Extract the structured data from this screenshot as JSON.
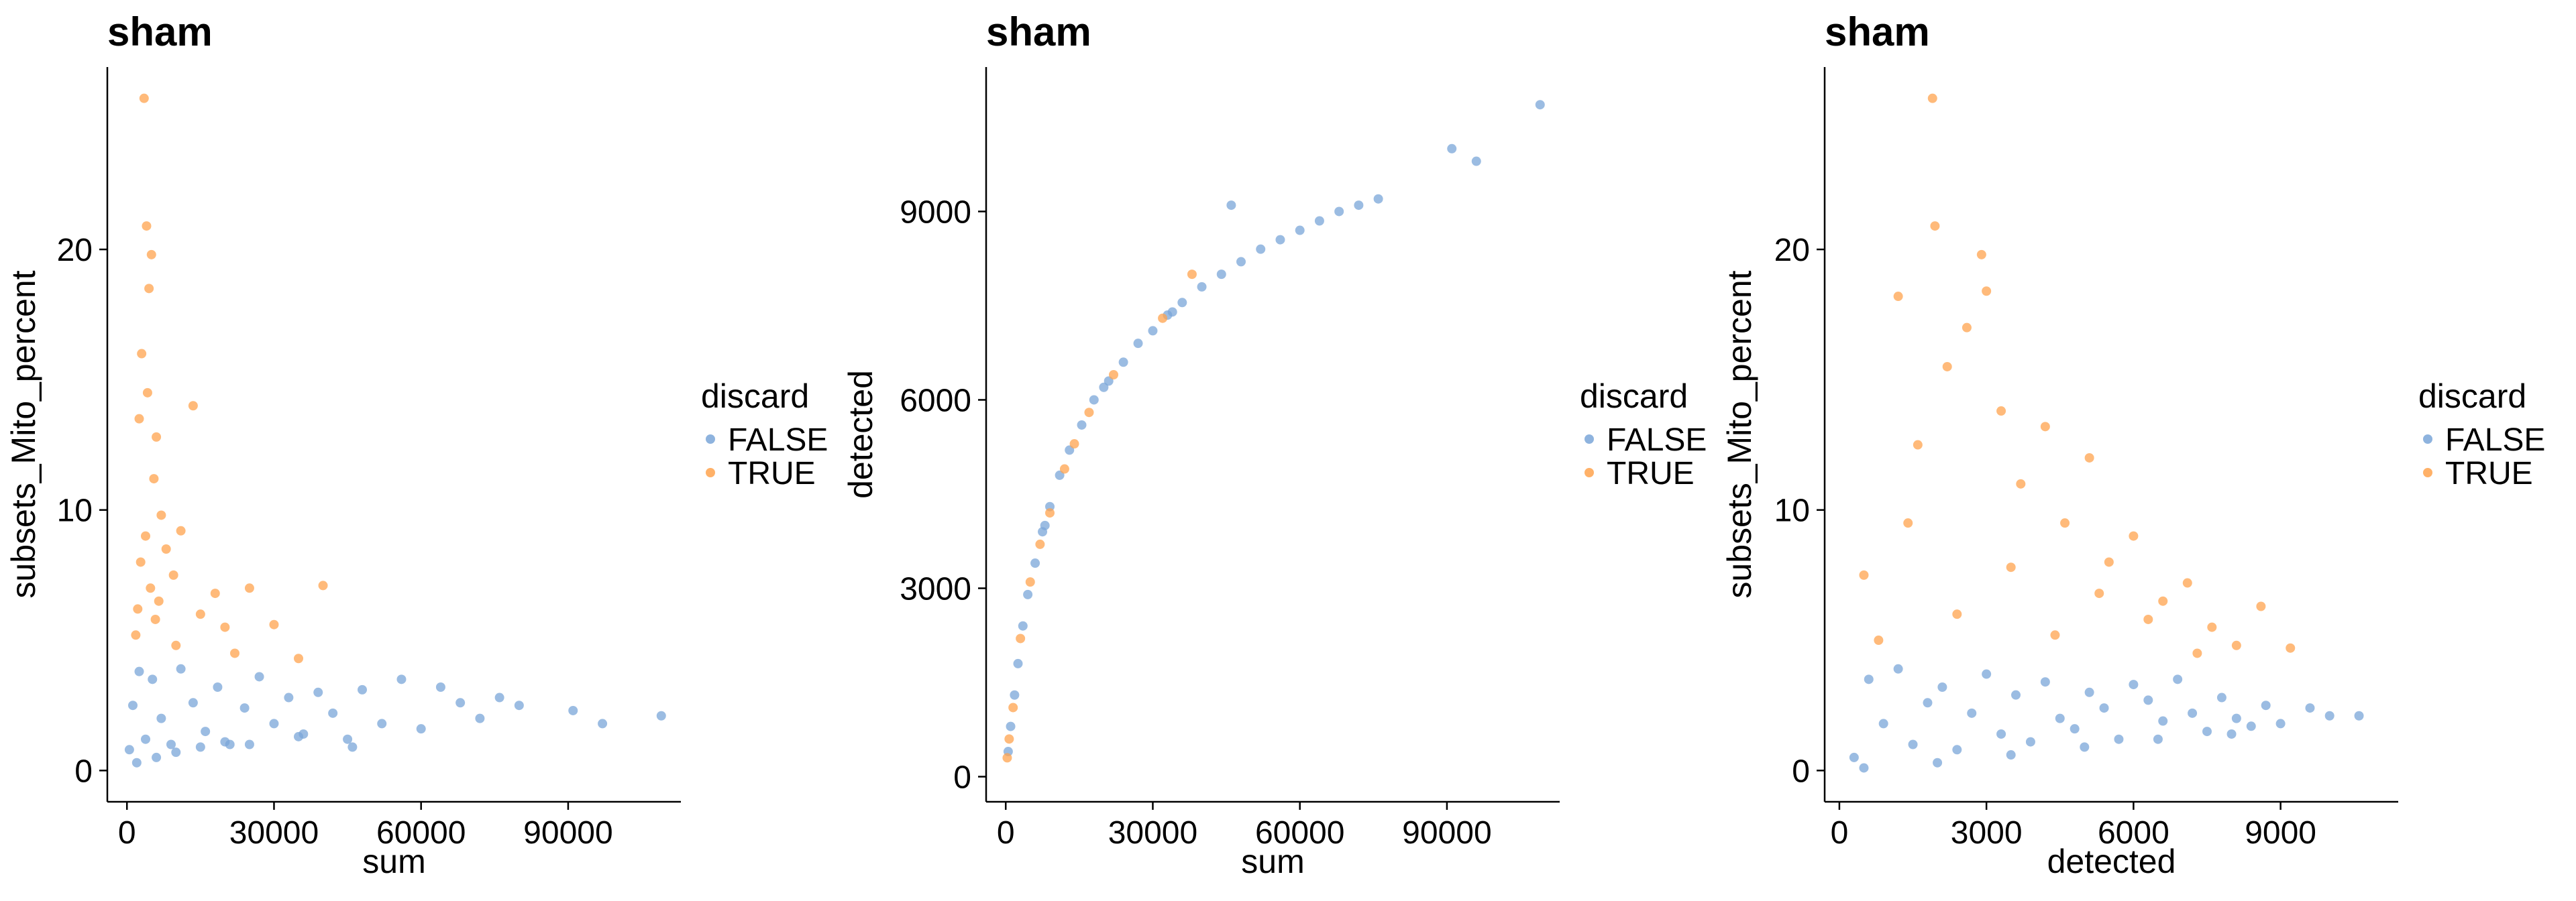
{
  "colors": {
    "FALSE": "#7aa6d8",
    "TRUE": "#ffa34d"
  },
  "chart_data": [
    {
      "type": "scatter",
      "title": "sham",
      "xlabel": "sum",
      "ylabel": "subsets_Mito_percent",
      "xlim": [
        -4000,
        113000
      ],
      "ylim": [
        -1.2,
        27
      ],
      "xticks": [
        0,
        30000,
        60000,
        90000
      ],
      "yticks": [
        0,
        10,
        20
      ],
      "legend": {
        "title": "discard",
        "entries": [
          "FALSE",
          "TRUE"
        ],
        "position": "right"
      },
      "series": [
        {
          "name": "FALSE",
          "color": "#7aa6d8",
          "x": [
            500,
            1200,
            2500,
            3800,
            5200,
            7000,
            9000,
            11000,
            13500,
            16000,
            18500,
            21000,
            24000,
            27000,
            30000,
            33000,
            36000,
            39000,
            42000,
            45000,
            48000,
            52000,
            56000,
            60000,
            64000,
            68000,
            72000,
            76000,
            80000,
            91000,
            97000,
            109000,
            2000,
            6000,
            10000,
            15000,
            20000,
            25000,
            35000,
            46000
          ],
          "y": [
            0.8,
            2.5,
            3.8,
            1.2,
            3.5,
            2.0,
            1.0,
            3.9,
            2.6,
            1.5,
            3.2,
            1.0,
            2.4,
            3.6,
            1.8,
            2.8,
            1.4,
            3.0,
            2.2,
            1.2,
            3.1,
            1.8,
            3.5,
            1.6,
            3.2,
            2.6,
            2.0,
            2.8,
            2.5,
            2.3,
            1.8,
            2.1,
            0.3,
            0.5,
            0.7,
            0.9,
            1.1,
            1.0,
            1.3,
            0.9
          ]
        },
        {
          "name": "TRUE",
          "color": "#ffa34d",
          "x": [
            3500,
            4000,
            4500,
            5000,
            3000,
            4200,
            6000,
            2500,
            5500,
            7000,
            3800,
            2800,
            4800,
            6500,
            8000,
            9500,
            11000,
            13500,
            15000,
            18000,
            20000,
            22000,
            25000,
            30000,
            35000,
            40000,
            1800,
            2200,
            5800,
            10000
          ],
          "y": [
            25.8,
            20.9,
            18.5,
            19.8,
            16.0,
            14.5,
            12.8,
            13.5,
            11.2,
            9.8,
            9.0,
            8.0,
            7.0,
            6.5,
            8.5,
            7.5,
            9.2,
            14.0,
            6.0,
            6.8,
            5.5,
            4.5,
            7.0,
            5.6,
            4.3,
            7.1,
            5.2,
            6.2,
            5.8,
            4.8
          ]
        }
      ]
    },
    {
      "type": "scatter",
      "title": "sham",
      "xlabel": "sum",
      "ylabel": "detected",
      "xlim": [
        -4000,
        113000
      ],
      "ylim": [
        -400,
        11300
      ],
      "xticks": [
        0,
        30000,
        60000,
        90000
      ],
      "yticks": [
        0,
        3000,
        6000,
        9000
      ],
      "legend": {
        "title": "discard",
        "entries": [
          "FALSE",
          "TRUE"
        ],
        "position": "right"
      },
      "series": [
        {
          "name": "FALSE",
          "color": "#7aa6d8",
          "x": [
            500,
            1000,
            1800,
            2500,
            3500,
            4500,
            6000,
            7500,
            9000,
            11000,
            13000,
            15500,
            18000,
            21000,
            24000,
            27000,
            30000,
            33000,
            36000,
            40000,
            44000,
            48000,
            52000,
            56000,
            60000,
            64000,
            68000,
            72000,
            76000,
            91000,
            96000,
            109000,
            8000,
            20000,
            34000,
            46000
          ],
          "y": [
            400,
            800,
            1300,
            1800,
            2400,
            2900,
            3400,
            3900,
            4300,
            4800,
            5200,
            5600,
            6000,
            6300,
            6600,
            6900,
            7100,
            7350,
            7550,
            7800,
            8000,
            8200,
            8400,
            8550,
            8700,
            8850,
            9000,
            9100,
            9200,
            10000,
            9800,
            10700,
            4000,
            6200,
            7400,
            9100
          ]
        },
        {
          "name": "TRUE",
          "color": "#ffa34d",
          "x": [
            300,
            700,
            1500,
            3000,
            5000,
            7000,
            9000,
            12000,
            14000,
            17000,
            22000,
            32000,
            38000
          ],
          "y": [
            300,
            600,
            1100,
            2200,
            3100,
            3700,
            4200,
            4900,
            5300,
            5800,
            6400,
            7300,
            8000
          ]
        }
      ]
    },
    {
      "type": "scatter",
      "title": "sham",
      "xlabel": "detected",
      "ylabel": "subsets_Mito_percent",
      "xlim": [
        -300,
        11400
      ],
      "ylim": [
        -1.2,
        27
      ],
      "xticks": [
        0,
        3000,
        6000,
        9000
      ],
      "yticks": [
        0,
        10,
        20
      ],
      "legend": {
        "title": "discard",
        "entries": [
          "FALSE",
          "TRUE"
        ],
        "position": "right"
      },
      "series": [
        {
          "name": "FALSE",
          "color": "#7aa6d8",
          "x": [
            300,
            600,
            900,
            1200,
            1500,
            1800,
            2100,
            2400,
            2700,
            3000,
            3300,
            3600,
            3900,
            4200,
            4500,
            4800,
            5100,
            5400,
            5700,
            6000,
            6300,
            6600,
            6900,
            7200,
            7500,
            7800,
            8100,
            8400,
            8700,
            9000,
            9600,
            10000,
            10600,
            500,
            2000,
            3500,
            5000,
            6500,
            8000
          ],
          "y": [
            0.5,
            3.5,
            1.8,
            3.9,
            1.0,
            2.6,
            3.2,
            0.8,
            2.2,
            3.7,
            1.4,
            2.9,
            1.1,
            3.4,
            2.0,
            1.6,
            3.0,
            2.4,
            1.2,
            3.3,
            2.7,
            1.9,
            3.5,
            2.2,
            1.5,
            2.8,
            2.0,
            1.7,
            2.5,
            1.8,
            2.4,
            2.1,
            2.1,
            0.1,
            0.3,
            0.6,
            0.9,
            1.2,
            1.4
          ]
        },
        {
          "name": "TRUE",
          "color": "#ffa34d",
          "x": [
            1900,
            1950,
            2900,
            3000,
            2600,
            2200,
            1200,
            1600,
            3300,
            3700,
            4200,
            4600,
            5100,
            5500,
            6000,
            6600,
            7100,
            7600,
            8100,
            8600,
            9200,
            500,
            800,
            1400,
            2400,
            3500,
            4400,
            5300,
            6300,
            7300
          ],
          "y": [
            25.8,
            20.9,
            19.8,
            18.4,
            17.0,
            15.5,
            18.2,
            12.5,
            13.8,
            11.0,
            13.2,
            9.5,
            12.0,
            8.0,
            9.0,
            6.5,
            7.2,
            5.5,
            4.8,
            6.3,
            4.7,
            7.5,
            5.0,
            9.5,
            6.0,
            7.8,
            5.2,
            6.8,
            5.8,
            4.5
          ]
        }
      ]
    }
  ]
}
